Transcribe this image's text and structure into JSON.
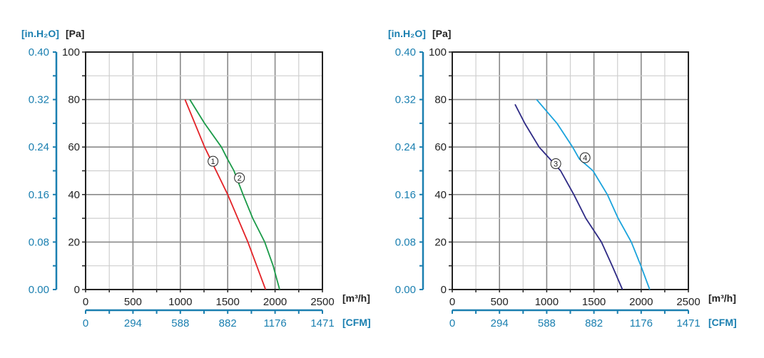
{
  "chart_data": [
    {
      "type": "line",
      "x_unit_label": "[m³/h]",
      "y_unit_label": "[Pa]",
      "y2_unit_label": "[in.H₂O]",
      "x2_unit_label": "[CFM]",
      "xlim": [
        0,
        2500
      ],
      "ylim": [
        0,
        100
      ],
      "x_ticks": [
        "0",
        "500",
        "1000",
        "1500",
        "2000",
        "2500"
      ],
      "y_ticks": [
        "0",
        "20",
        "40",
        "60",
        "80",
        "100"
      ],
      "y2_ticks": [
        "0.00",
        "0.08",
        "0.16",
        "0.24",
        "0.32",
        "0.40"
      ],
      "x2_ticks": [
        "0",
        "294",
        "588",
        "882",
        "1176",
        "1471"
      ],
      "grid": true,
      "series": [
        {
          "name": "1",
          "color": "#e32227",
          "label_at": [
            1345,
            54
          ],
          "x": [
            1050,
            1256,
            1500,
            1713,
            1900
          ],
          "y": [
            80,
            60,
            40,
            20,
            0
          ]
        },
        {
          "name": "2",
          "color": "#1a9a48",
          "label_at": [
            1624,
            47
          ],
          "x": [
            1100,
            1255,
            1434,
            1497,
            1566,
            1662,
            1764,
            1891,
            1980,
            2048
          ],
          "y": [
            80,
            70,
            60,
            55,
            50,
            40,
            30,
            20,
            10,
            0
          ]
        }
      ]
    },
    {
      "type": "line",
      "x_unit_label": "[m³/h]",
      "y_unit_label": "[Pa]",
      "y2_unit_label": "[in.H₂O]",
      "x2_unit_label": "[CFM]",
      "xlim": [
        0,
        2500
      ],
      "ylim": [
        0,
        100
      ],
      "x_ticks": [
        "0",
        "500",
        "1000",
        "1500",
        "2000",
        "2500"
      ],
      "y_ticks": [
        "0",
        "20",
        "40",
        "60",
        "80",
        "100"
      ],
      "y2_ticks": [
        "0.00",
        "0.08",
        "0.16",
        "0.24",
        "0.32",
        "0.40"
      ],
      "x2_ticks": [
        "0",
        "294",
        "588",
        "882",
        "1176",
        "1471"
      ],
      "grid": true,
      "series": [
        {
          "name": "3",
          "color": "#2e2a85",
          "label_at": [
            1096,
            53
          ],
          "x": [
            665,
            767,
            919,
            1033,
            1147,
            1287,
            1414,
            1579,
            1693,
            1802
          ],
          "y": [
            78,
            70,
            60,
            55,
            50,
            40,
            30,
            20,
            10,
            0
          ]
        },
        {
          "name": "4",
          "color": "#1aa3dc",
          "label_at": [
            1406,
            55.5
          ],
          "x": [
            893,
            1109,
            1274,
            1345,
            1490,
            1642,
            1756,
            1896,
            1997,
            2091
          ],
          "y": [
            80,
            70,
            60,
            55,
            50,
            40,
            30,
            20,
            10,
            0
          ]
        }
      ]
    }
  ]
}
